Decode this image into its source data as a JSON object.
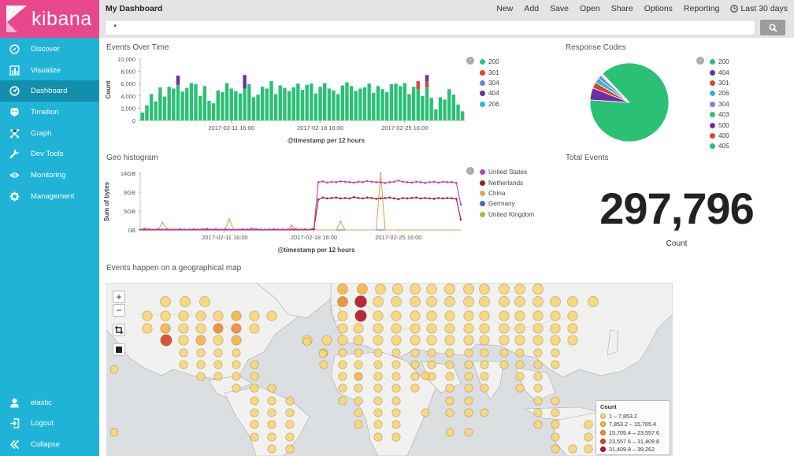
{
  "app": {
    "name": "kibana",
    "dashboard_title": "My Dashboard"
  },
  "sidebar": {
    "items": [
      {
        "label": "Discover",
        "icon": "compass-icon"
      },
      {
        "label": "Visualize",
        "icon": "bar-chart-icon"
      },
      {
        "label": "Dashboard",
        "icon": "dashboard-icon",
        "active": true
      },
      {
        "label": "Timelion",
        "icon": "timelion-icon"
      },
      {
        "label": "Graph",
        "icon": "graph-icon"
      },
      {
        "label": "Dev Tools",
        "icon": "wrench-icon"
      },
      {
        "label": "Monitoring",
        "icon": "eye-icon"
      },
      {
        "label": "Management",
        "icon": "gear-icon"
      }
    ],
    "bottom_items": [
      {
        "label": "elastic",
        "icon": "user-icon"
      },
      {
        "label": "Logout",
        "icon": "logout-icon"
      },
      {
        "label": "Collapse",
        "icon": "collapse-icon"
      }
    ]
  },
  "topmenu": {
    "items": [
      "New",
      "Add",
      "Save",
      "Open",
      "Share",
      "Options",
      "Reporting"
    ],
    "time_picker": "Last 30 days"
  },
  "query": {
    "value": "*"
  },
  "colors": {
    "sidebar": "#1eb3d7",
    "logo_bg": "#e8478b",
    "active": "#138fae",
    "s200": "#2ac175",
    "s301": "#d9442f",
    "s304": "#7b84c8",
    "s404": "#6f2ea3",
    "s206": "#2fb4d6"
  },
  "panels": {
    "events_over_time": {
      "title": "Events Over Time",
      "legend": [
        {
          "label": "200",
          "color": "#2ac175"
        },
        {
          "label": "301",
          "color": "#d9442f"
        },
        {
          "label": "304",
          "color": "#7b84c8"
        },
        {
          "label": "404",
          "color": "#6f2ea3"
        },
        {
          "label": "206",
          "color": "#2fb4d6"
        }
      ]
    },
    "response_codes": {
      "title": "Response Codes",
      "legend": [
        {
          "label": "200",
          "color": "#2ac175"
        },
        {
          "label": "404",
          "color": "#6f2ea3"
        },
        {
          "label": "301",
          "color": "#d9442f"
        },
        {
          "label": "206",
          "color": "#2fb4d6"
        },
        {
          "label": "304",
          "color": "#7b84c8"
        },
        {
          "label": "403",
          "color": "#2ac175"
        },
        {
          "label": "500",
          "color": "#6f2ea3"
        },
        {
          "label": "400",
          "color": "#d9442f"
        },
        {
          "label": "405",
          "color": "#2ac175"
        }
      ]
    },
    "geo_histogram": {
      "title": "Geo histogram",
      "legend": [
        {
          "label": "United States",
          "color": "#c43fb4"
        },
        {
          "label": "Netherlands",
          "color": "#8f1f2a"
        },
        {
          "label": "China",
          "color": "#e1a557"
        },
        {
          "label": "Germany",
          "color": "#3e6bb8"
        },
        {
          "label": "United Kingdom",
          "color": "#b6b33e"
        }
      ]
    },
    "total_events": {
      "title": "Total Events",
      "value": "297,796",
      "label": "Count"
    },
    "geo_map": {
      "title": "Events happen on a geographical map",
      "legend_title": "Count",
      "legend": [
        {
          "label": "1 – 7,853.2",
          "color": "#f7d77a"
        },
        {
          "label": "7,853.2 – 15,705.4",
          "color": "#f4b54b"
        },
        {
          "label": "15,705.4 – 23,557.6",
          "color": "#ee8c3a"
        },
        {
          "label": "23,557.6 – 31,409.8",
          "color": "#d9452f"
        },
        {
          "label": "31,409.8 – 39,262",
          "color": "#b8142a"
        }
      ],
      "controls": [
        "+",
        "−"
      ]
    }
  },
  "chart_data": [
    {
      "type": "bar",
      "title": "Events Over Time",
      "xlabel": "@timestamp per 12 hours",
      "ylabel": "Count",
      "ylim": [
        0,
        10000
      ],
      "yticks": [
        "10,000",
        "8,000",
        "6,000",
        "4,000",
        "2,000",
        "0"
      ],
      "xtick_labels": [
        "2017-02-11 16:00",
        "2017-02-18 16:00",
        "2017-02-25 16:00"
      ],
      "series": [
        {
          "name": "200",
          "values": [
            1300,
            2500,
            4300,
            3100,
            5400,
            3900,
            5500,
            5200,
            5800,
            4700,
            5300,
            6100,
            5900,
            4000,
            5600,
            3200,
            2800,
            4900,
            4600,
            6100,
            5200,
            4800,
            4400,
            5200,
            5900,
            3800,
            4200,
            5500,
            5200,
            6400,
            4300,
            5700,
            5300,
            4800,
            5400,
            6000,
            5000,
            5800,
            6000,
            4400,
            5500,
            6100,
            5200,
            4900,
            4300,
            5700,
            6200,
            5600,
            4800,
            5200,
            5400,
            6000,
            4500,
            5600,
            5100,
            4600,
            5900,
            6000,
            5600,
            6100,
            4300,
            5500,
            5100,
            4000,
            5400,
            3700,
            1800,
            3800,
            3400,
            5100,
            4200,
            2600,
            1500
          ]
        },
        {
          "name": "301",
          "values": [
            0,
            0,
            0,
            0,
            0,
            0,
            0,
            0,
            0,
            0,
            0,
            0,
            0,
            0,
            0,
            0,
            0,
            0,
            0,
            0,
            0,
            0,
            0,
            0,
            0,
            0,
            0,
            0,
            0,
            0,
            0,
            0,
            0,
            0,
            0,
            0,
            0,
            0,
            0,
            0,
            0,
            0,
            0,
            0,
            0,
            0,
            0,
            0,
            0,
            0,
            0,
            0,
            0,
            0,
            0,
            0,
            0,
            0,
            0,
            0,
            0,
            0,
            1300,
            0,
            1000,
            0,
            0,
            0,
            0,
            0,
            0,
            0,
            0
          ]
        },
        {
          "name": "304",
          "values": [
            0,
            0,
            0,
            0,
            0,
            0,
            0,
            0,
            0,
            0,
            0,
            0,
            0,
            0,
            0,
            0,
            0,
            0,
            0,
            0,
            0,
            0,
            0,
            0,
            0,
            0,
            0,
            0,
            0,
            0,
            0,
            0,
            0,
            0,
            0,
            0,
            0,
            0,
            0,
            0,
            0,
            0,
            0,
            0,
            0,
            0,
            0,
            0,
            0,
            0,
            0,
            0,
            0,
            0,
            0,
            0,
            0,
            0,
            0,
            0,
            0,
            0,
            0,
            0,
            0,
            0,
            0,
            0,
            0,
            0,
            0,
            0,
            0
          ]
        },
        {
          "name": "404",
          "values": [
            0,
            0,
            0,
            0,
            0,
            0,
            0,
            0,
            1500,
            0,
            0,
            0,
            0,
            0,
            0,
            0,
            0,
            0,
            0,
            0,
            0,
            0,
            0,
            2200,
            0,
            0,
            0,
            0,
            0,
            0,
            0,
            0,
            0,
            0,
            0,
            0,
            0,
            0,
            0,
            0,
            0,
            0,
            0,
            0,
            0,
            0,
            0,
            0,
            0,
            0,
            0,
            0,
            0,
            0,
            0,
            0,
            0,
            0,
            0,
            0,
            0,
            0,
            0,
            0,
            1000,
            0,
            0,
            0,
            0,
            0,
            0,
            0,
            0
          ]
        },
        {
          "name": "206",
          "values": [
            0,
            0,
            0,
            0,
            0,
            0,
            0,
            0,
            0,
            0,
            0,
            0,
            0,
            0,
            0,
            0,
            0,
            0,
            0,
            0,
            0,
            0,
            0,
            0,
            0,
            0,
            0,
            0,
            0,
            0,
            0,
            0,
            0,
            0,
            0,
            0,
            0,
            0,
            0,
            0,
            0,
            0,
            0,
            0,
            0,
            0,
            0,
            0,
            0,
            0,
            0,
            0,
            0,
            0,
            0,
            0,
            0,
            0,
            0,
            0,
            0,
            0,
            0,
            0,
            0,
            0,
            0,
            0,
            0,
            0,
            0,
            0,
            0
          ]
        }
      ]
    },
    {
      "type": "pie",
      "title": "Response Codes",
      "slices": [
        {
          "label": "200",
          "value": 88,
          "color": "#2ac175"
        },
        {
          "label": "404",
          "value": 5,
          "color": "#6f2ea3"
        },
        {
          "label": "301",
          "value": 2.5,
          "color": "#d9442f"
        },
        {
          "label": "206",
          "value": 2,
          "color": "#2fb4d6"
        },
        {
          "label": "304",
          "value": 1.5,
          "color": "#7b84c8"
        },
        {
          "label": "403",
          "value": 0.4,
          "color": "#2ac175"
        },
        {
          "label": "500",
          "value": 0.3,
          "color": "#6f2ea3"
        },
        {
          "label": "400",
          "value": 0.2,
          "color": "#d9442f"
        },
        {
          "label": "405",
          "value": 0.1,
          "color": "#2ac175"
        }
      ]
    },
    {
      "type": "line",
      "title": "Geo histogram",
      "xlabel": "@timestamp per 12 hours",
      "ylabel": "Sum of bytes",
      "ylim": [
        0,
        14
      ],
      "ytick_labels": [
        "14GB",
        "9GB",
        "5GB",
        "0B"
      ],
      "xtick_labels": [
        "2017-02-11 16:00",
        "2017-02-18 16:00",
        "2017-02-25 16:00"
      ],
      "series": [
        {
          "name": "United States",
          "color": "#c43fb4",
          "values": [
            0.1,
            0.3,
            0.2,
            0.1,
            0.2,
            0.1,
            0.2,
            0.1,
            0.1,
            0.2,
            0.1,
            0.1,
            0.2,
            0.1,
            0.2,
            0.3,
            0.1,
            0.2,
            0.1,
            0.2,
            0.1,
            0.1,
            0.1,
            0.2,
            0.1,
            0.3,
            0.2,
            0.1,
            0.1,
            0.1,
            0.2,
            0.1,
            0.1,
            0.1,
            0.2,
            0.2,
            0.1,
            0.2,
            0.1,
            0.4,
            11.8,
            12.0,
            11.7,
            11.9,
            11.8,
            12.0,
            11.9,
            11.8,
            11.7,
            11.9,
            11.8,
            12.1,
            11.9,
            11.8,
            11.8,
            11.6,
            11.8,
            11.9,
            12.2,
            11.9,
            11.8,
            11.7,
            11.9,
            11.8,
            11.6,
            11.8,
            11.9,
            11.7,
            11.9,
            11.8,
            11.8,
            11.6,
            6.3
          ]
        },
        {
          "name": "Netherlands",
          "color": "#8f1f2a",
          "values": [
            0,
            0,
            0,
            0,
            0,
            0,
            0,
            0,
            0,
            0,
            0,
            0,
            0,
            0,
            0,
            0,
            0,
            0,
            0,
            0,
            0,
            0,
            0,
            0,
            0,
            0,
            0,
            0,
            0,
            0,
            0,
            0,
            0,
            0,
            0,
            0,
            0,
            0,
            0,
            0.2,
            7.5,
            8.0,
            7.8,
            7.9,
            8.0,
            7.8,
            7.9,
            7.8,
            8.1,
            7.9,
            7.8,
            8.0,
            7.9,
            7.7,
            7.8,
            7.9,
            8.0,
            7.8,
            7.6,
            7.9,
            7.8,
            7.9,
            8.0,
            7.8,
            7.9,
            7.8,
            7.7,
            7.9,
            7.8,
            7.9,
            7.8,
            7.7,
            2.6
          ]
        },
        {
          "name": "China",
          "color": "#e1a557",
          "values": [
            0,
            0,
            0,
            0,
            0,
            1.8,
            0,
            0,
            0,
            0,
            0,
            0,
            0,
            0,
            0,
            0,
            0,
            0,
            0,
            0,
            2.6,
            0,
            0,
            0,
            0,
            0,
            0,
            0,
            0,
            0,
            0,
            0,
            0,
            0,
            1.1,
            0,
            0,
            0,
            0,
            0,
            0,
            0,
            0,
            0,
            0,
            2.0,
            0,
            0,
            0,
            0,
            0,
            0,
            0,
            0,
            14.0,
            0,
            0,
            0,
            0,
            0,
            0,
            0,
            0,
            0,
            0,
            0,
            0,
            0,
            0,
            0,
            0,
            0,
            0
          ]
        },
        {
          "name": "Germany",
          "color": "#3e6bb8",
          "values": [
            0,
            0,
            0,
            0,
            0,
            0,
            0,
            0,
            0,
            0,
            0,
            0,
            0,
            0,
            0,
            0,
            0,
            0,
            0,
            0,
            0,
            0,
            0,
            0,
            0,
            0,
            0,
            0,
            0,
            0,
            0,
            0,
            0,
            0,
            0,
            0,
            0,
            0,
            0,
            0,
            0,
            0,
            0,
            0,
            0,
            0,
            0,
            0,
            0,
            0,
            0,
            0,
            0,
            0,
            0,
            0,
            0,
            0,
            0,
            0,
            0,
            0,
            0,
            0,
            0,
            0,
            0,
            0,
            0,
            0,
            0,
            0,
            0
          ]
        },
        {
          "name": "United Kingdom",
          "color": "#b6b33e",
          "values": [
            0,
            0,
            0,
            0,
            0,
            0,
            0,
            0,
            0,
            0,
            0,
            0,
            0,
            0,
            0,
            0,
            0,
            0,
            0,
            0,
            0,
            0,
            0,
            0,
            0,
            0,
            0,
            0,
            0,
            0,
            0,
            0,
            0,
            0,
            0,
            0,
            0,
            0,
            0,
            0,
            0,
            0,
            0,
            0,
            0,
            0,
            0,
            0,
            0,
            0,
            0,
            0,
            0,
            0,
            0,
            0,
            0,
            0,
            0,
            0,
            0,
            0,
            0,
            0,
            0,
            0,
            0,
            0,
            0,
            0,
            0,
            0,
            0
          ]
        }
      ]
    }
  ]
}
